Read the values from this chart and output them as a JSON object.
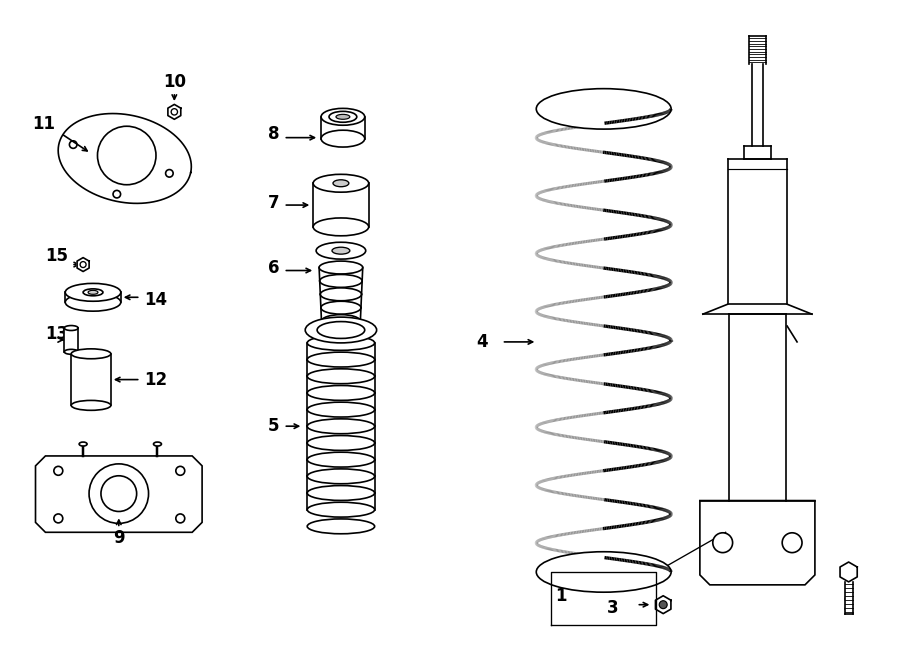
{
  "bg_color": "#ffffff",
  "line_color": "#000000",
  "lw": 1.2,
  "fig_width": 9.0,
  "fig_height": 6.62,
  "dpi": 100,
  "xlim": [
    0,
    9
  ],
  "ylim": [
    0,
    6.62
  ]
}
